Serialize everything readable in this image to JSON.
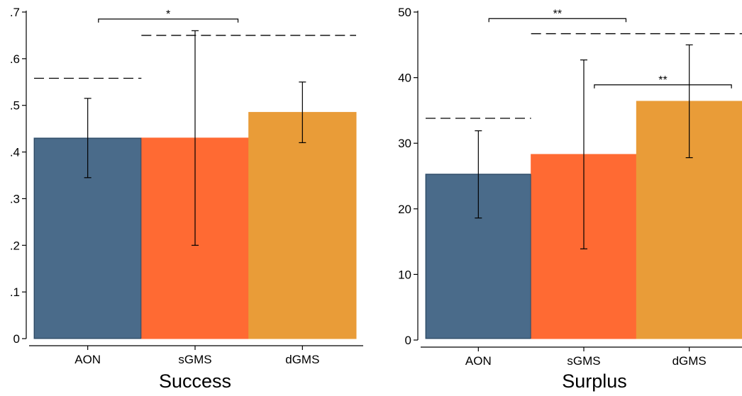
{
  "chart_data": [
    {
      "type": "bar",
      "xlabel": "Success",
      "ylabel": "",
      "categories": [
        "AON",
        "sGMS",
        "dGMS"
      ],
      "values": [
        0.43,
        0.43,
        0.485
      ],
      "error_low": [
        0.345,
        0.2,
        0.42
      ],
      "error_high": [
        0.515,
        0.66,
        0.55
      ],
      "colors": [
        "#4a6b8a",
        "#ff6a33",
        "#e99c38"
      ],
      "ylim": [
        0,
        0.7
      ],
      "yticks": [
        0,
        0.1,
        0.2,
        0.3,
        0.4,
        0.5,
        0.6,
        0.7
      ],
      "yticklabels": [
        "0",
        ".1",
        ".2",
        ".3",
        ".4",
        ".5",
        ".6",
        ".7"
      ],
      "reference_lines": [
        {
          "value": 0.558,
          "from_category": 0,
          "to_category": 0
        },
        {
          "value": 0.65,
          "from_category": 1,
          "to_category": 2
        }
      ],
      "significance": [
        {
          "from_category": 0,
          "to_category": 1,
          "label": "*",
          "level": 0.685
        }
      ],
      "grid": false,
      "legend": "none"
    },
    {
      "type": "bar",
      "xlabel": "Surplus",
      "ylabel": "",
      "categories": [
        "AON",
        "sGMS",
        "dGMS"
      ],
      "values": [
        25.3,
        28.3,
        36.4
      ],
      "error_low": [
        18.6,
        13.9,
        27.8
      ],
      "error_high": [
        31.9,
        42.7,
        45.0
      ],
      "colors": [
        "#4a6b8a",
        "#ff6a33",
        "#e99c38"
      ],
      "ylim": [
        0,
        50
      ],
      "yticks": [
        0,
        10,
        20,
        30,
        40,
        50
      ],
      "yticklabels": [
        "0",
        "10",
        "20",
        "30",
        "40",
        "50"
      ],
      "reference_lines": [
        {
          "value": 33.8,
          "from_category": 0,
          "to_category": 0
        },
        {
          "value": 46.7,
          "from_category": 1,
          "to_category": 2
        }
      ],
      "significance": [
        {
          "from_category": 0,
          "to_category": 1,
          "label": "**",
          "level": 49.0
        },
        {
          "from_category": 1,
          "to_category": 2,
          "label": "**",
          "level": 38.9
        }
      ],
      "grid": false,
      "legend": "none"
    }
  ]
}
